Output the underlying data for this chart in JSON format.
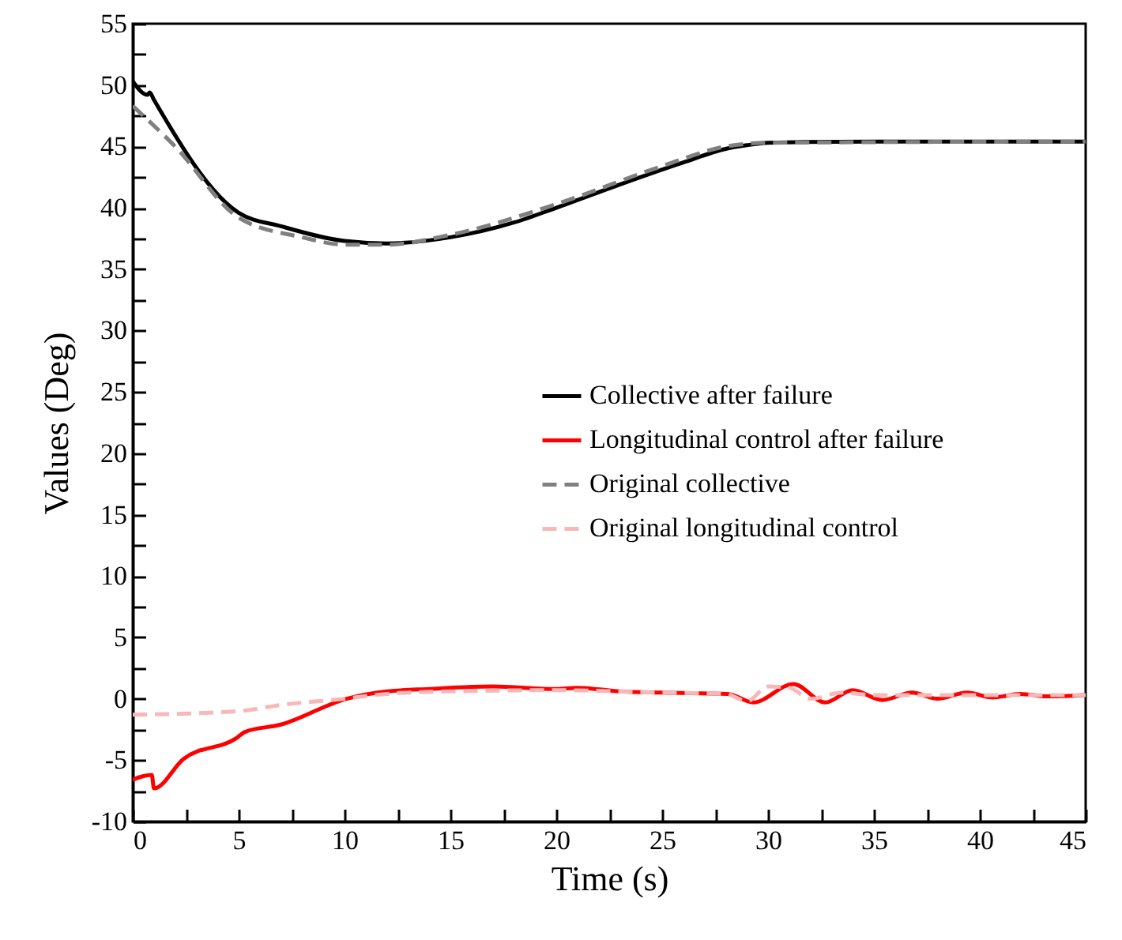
{
  "chart_data": {
    "type": "line",
    "xlabel": "Time (s)",
    "ylabel": "Values (Deg)",
    "xlim": [
      0,
      45
    ],
    "ylim": [
      -10,
      55
    ],
    "xticks": [
      0,
      {
        "value": 2.5,
        "label": null
      },
      5,
      {
        "value": 7.5,
        "label": null
      },
      10,
      {
        "value": 12.5,
        "label": null
      },
      15,
      {
        "value": 17.5,
        "label": null
      },
      20,
      {
        "value": 22.5,
        "label": null
      },
      25,
      {
        "value": 27.5,
        "label": null
      },
      30,
      {
        "value": 32.5,
        "label": null
      },
      35,
      {
        "value": 37.5,
        "label": null
      },
      40,
      {
        "value": 42.5,
        "label": null
      },
      45
    ],
    "yticks": [
      -10,
      {
        "value": -7.5,
        "label": null
      },
      -5,
      {
        "value": -2.5,
        "label": null
      },
      0,
      {
        "value": 2.5,
        "label": null
      },
      5,
      {
        "value": 7.5,
        "label": null
      },
      10,
      {
        "value": 12.5,
        "label": null
      },
      15,
      {
        "value": 17.5,
        "label": null
      },
      20,
      {
        "value": 22.5,
        "label": null
      },
      25,
      {
        "value": 27.5,
        "label": null
      },
      30,
      {
        "value": 32.5,
        "label": null
      },
      35,
      {
        "value": 37.5,
        "label": null
      },
      40,
      {
        "value": 42.5,
        "label": null
      },
      45,
      {
        "value": 47.5,
        "label": null
      },
      50,
      {
        "value": 52.5,
        "label": null
      },
      55
    ],
    "grid": false,
    "legend": "right",
    "marker": "none",
    "series": [
      {
        "name": "Collective after failure",
        "color": "#000000",
        "line_style": "solid",
        "x": [
          0,
          0.7,
          0.8,
          1,
          5,
          7,
          10,
          12,
          15,
          18,
          20,
          23,
          26,
          28,
          29,
          30,
          35,
          45
        ],
        "values": [
          50.3,
          49.2,
          49.4,
          48.8,
          39.6,
          38.5,
          37.3,
          37.1,
          37.6,
          38.8,
          40.0,
          41.9,
          43.7,
          44.8,
          45.1,
          45.3,
          45.4,
          45.4
        ]
      },
      {
        "name": "Longitudinal control after failure",
        "color": "#ff0000",
        "line_style": "solid",
        "x": [
          0,
          0.5,
          0.9,
          1.0,
          2.4,
          4.9,
          5.3,
          7,
          10.1,
          12,
          14,
          17,
          20,
          21,
          23,
          25,
          28.1,
          29.3,
          31.2,
          32.7,
          34.0,
          35.4,
          36.8,
          38.0,
          39.4,
          40.6,
          41.9,
          43.2,
          45
        ],
        "values": [
          -6.6,
          -6.3,
          -6.2,
          -7.3,
          -4.9,
          -3.2,
          -2.7,
          -2.1,
          0.0,
          0.6,
          0.8,
          1.0,
          0.8,
          0.9,
          0.6,
          0.5,
          0.4,
          -0.3,
          1.2,
          -0.3,
          0.7,
          -0.1,
          0.5,
          0.0,
          0.5,
          0.1,
          0.4,
          0.2,
          0.3
        ]
      },
      {
        "name": "Original collective",
        "color": "#808080",
        "line_style": "dashed",
        "x": [
          0,
          2,
          5,
          8,
          10,
          12,
          15,
          20,
          25,
          28,
          30,
          45
        ],
        "values": [
          48.3,
          45.0,
          39.2,
          37.6,
          37.0,
          37.0,
          37.8,
          40.3,
          43.4,
          45.0,
          45.3,
          45.4
        ]
      },
      {
        "name": "Original longitudinal control",
        "color": "#f8b8b8",
        "line_style": "dashed",
        "x": [
          0,
          5,
          7,
          10,
          12,
          15,
          20,
          25,
          28,
          29,
          30,
          31,
          32,
          33.5,
          35,
          45
        ],
        "values": [
          -1.3,
          -1.0,
          -0.5,
          0.0,
          0.4,
          0.6,
          0.7,
          0.5,
          0.4,
          -0.2,
          1.0,
          0.9,
          0.0,
          0.5,
          0.3,
          0.3
        ]
      }
    ]
  }
}
